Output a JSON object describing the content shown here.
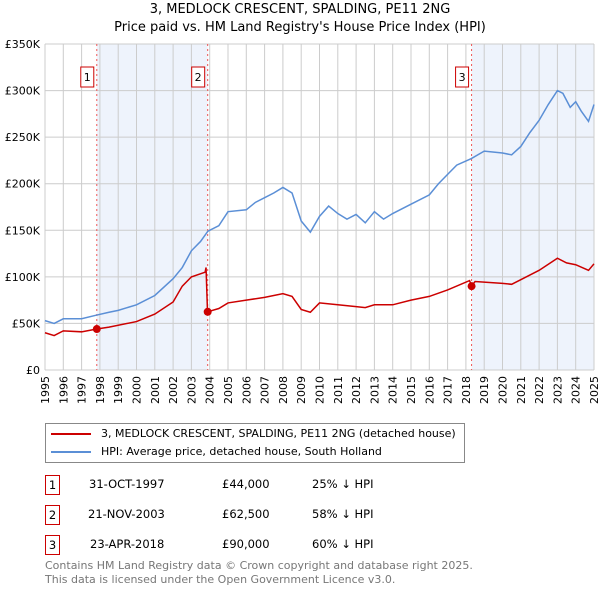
{
  "chart_data": {
    "type": "line",
    "title": "3, MEDLOCK CRESCENT, SPALDING, PE11 2NG",
    "subtitle": "Price paid vs. HM Land Registry's House Price Index (HPI)",
    "xlim": [
      1995,
      2025
    ],
    "ylim": [
      0,
      350000
    ],
    "yticks": [
      0,
      50000,
      100000,
      150000,
      200000,
      250000,
      300000,
      350000
    ],
    "ytick_labels": [
      "£0",
      "£50K",
      "£100K",
      "£150K",
      "£200K",
      "£250K",
      "£300K",
      "£350K"
    ],
    "xticks": [
      1995,
      1996,
      1997,
      1998,
      1999,
      2000,
      2001,
      2002,
      2003,
      2004,
      2005,
      2006,
      2007,
      2008,
      2009,
      2010,
      2011,
      2012,
      2013,
      2014,
      2015,
      2016,
      2017,
      2018,
      2019,
      2020,
      2021,
      2022,
      2023,
      2024,
      2025
    ],
    "grid": true,
    "series": [
      {
        "name": "3, MEDLOCK CRESCENT, SPALDING, PE11 2NG (detached house)",
        "color": "#cc0000",
        "x": [
          1995,
          1995.5,
          1996,
          1997,
          1997.83,
          1998.5,
          2000,
          2001,
          2002,
          2002.5,
          2003,
          2003.75,
          2003.8,
          2003.88,
          2004.5,
          2005,
          2006,
          2007,
          2008,
          2008.5,
          2009,
          2009.5,
          2010,
          2011,
          2012,
          2012.5,
          2013,
          2014,
          2015,
          2016,
          2017,
          2018.2,
          2018.31,
          2018.5,
          2020,
          2020.5,
          2021,
          2022,
          2023,
          2023.5,
          2024,
          2024.7,
          2025
        ],
        "y": [
          40000,
          37000,
          42000,
          41000,
          44000,
          46000,
          52000,
          60000,
          73000,
          90000,
          100000,
          105000,
          110000,
          62500,
          66000,
          72000,
          75000,
          78000,
          82000,
          79000,
          65000,
          62000,
          72000,
          70000,
          68000,
          67000,
          70000,
          70000,
          75000,
          79000,
          86000,
          96000,
          90000,
          95000,
          93000,
          92000,
          97000,
          107000,
          120000,
          115000,
          113000,
          107000,
          114000
        ]
      },
      {
        "name": "HPI: Average price, detached house, South Holland",
        "color": "#5b8fd6",
        "x": [
          1995,
          1995.5,
          1996,
          1997,
          1997.83,
          1998.5,
          1999,
          2000,
          2001,
          2002,
          2002.5,
          2003,
          2003.5,
          2003.9,
          2004.5,
          2005,
          2006,
          2006.5,
          2007,
          2007.5,
          2008,
          2008.5,
          2009,
          2009.5,
          2010,
          2010.5,
          2011,
          2011.5,
          2012,
          2012.5,
          2013,
          2013.5,
          2014,
          2015,
          2016,
          2016.5,
          2017,
          2017.5,
          2018.3,
          2019,
          2020,
          2020.5,
          2021,
          2021.5,
          2022,
          2022.5,
          2023,
          2023.3,
          2023.7,
          2024,
          2024.3,
          2024.7,
          2025
        ],
        "y": [
          53000,
          50000,
          55000,
          55000,
          59000,
          62000,
          64000,
          70000,
          80000,
          98000,
          110000,
          128000,
          138000,
          149000,
          155000,
          170000,
          172000,
          180000,
          185000,
          190000,
          196000,
          190000,
          160000,
          148000,
          165000,
          176000,
          168000,
          162000,
          167000,
          158000,
          170000,
          162000,
          168000,
          178000,
          188000,
          200000,
          210000,
          220000,
          227000,
          235000,
          233000,
          231000,
          240000,
          255000,
          268000,
          285000,
          300000,
          297000,
          282000,
          288000,
          278000,
          267000,
          285000
        ]
      }
    ],
    "sales": [
      {
        "label": "1",
        "x": 1997.83,
        "price": 44000
      },
      {
        "label": "2",
        "x": 2003.89,
        "price": 62500
      },
      {
        "label": "3",
        "x": 2018.31,
        "price": 90000
      }
    ]
  },
  "legend": {
    "items": [
      "3, MEDLOCK CRESCENT, SPALDING, PE11 2NG (detached house)",
      "HPI: Average price, detached house, South Holland"
    ]
  },
  "table": [
    {
      "num": "1",
      "date": "31-OCT-1997",
      "price": "£44,000",
      "hpi": "25% ↓ HPI"
    },
    {
      "num": "2",
      "date": "21-NOV-2003",
      "price": "£62,500",
      "hpi": "58% ↓ HPI"
    },
    {
      "num": "3",
      "date": "23-APR-2018",
      "price": "£90,000",
      "hpi": "60% ↓ HPI"
    }
  ],
  "footer": [
    "Contains HM Land Registry data © Crown copyright and database right 2025.",
    "This data is licensed under the Open Government Licence v3.0."
  ]
}
